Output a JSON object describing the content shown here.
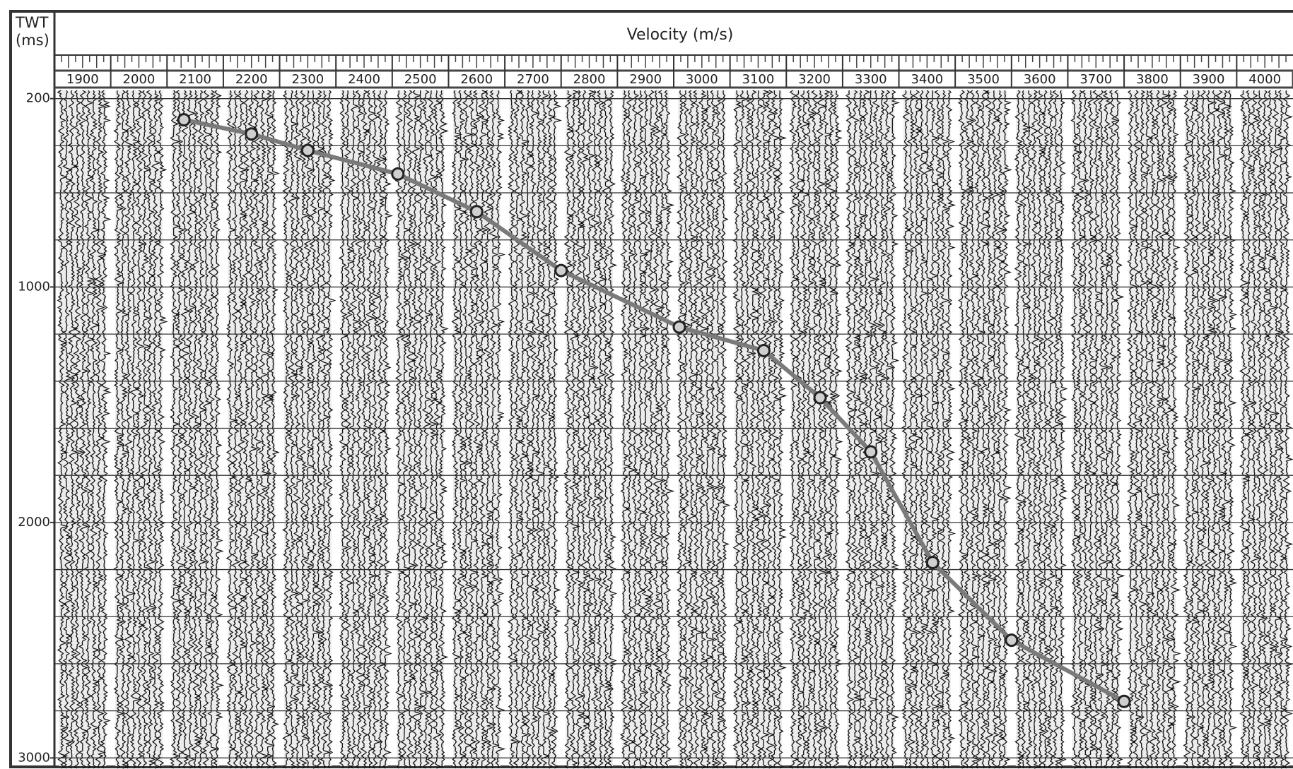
{
  "chart_data": {
    "type": "line",
    "title": "Velocity (m/s)",
    "ylabel": "TWT (ms)",
    "x": [
      2080,
      2200,
      2300,
      2460,
      2600,
      2750,
      2960,
      3110,
      3210,
      3300,
      3410,
      3550,
      3750
    ],
    "values": [
      290,
      350,
      420,
      520,
      680,
      930,
      1170,
      1270,
      1470,
      1700,
      2170,
      2500,
      2760
    ],
    "color": "#7a7a7a",
    "xlim": [
      1850,
      4050
    ],
    "xticks": [
      1900,
      2000,
      2100,
      2200,
      2300,
      2400,
      2500,
      2600,
      2700,
      2800,
      2900,
      3000,
      3100,
      3200,
      3300,
      3400,
      3500,
      3600,
      3700,
      3800,
      3900,
      4000
    ],
    "ylim": [
      165,
      3035
    ],
    "yticks": [
      200,
      1000,
      2000,
      3000
    ],
    "y_reversed": true,
    "grid_lines_y": [
      200,
      400,
      600,
      800,
      1000,
      1200,
      1400,
      1600,
      1800,
      2000,
      2200,
      2400,
      2600,
      2800,
      3000
    ]
  }
}
